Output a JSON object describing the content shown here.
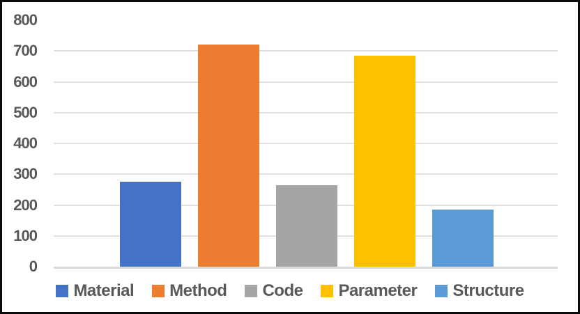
{
  "chart_data": {
    "type": "bar",
    "title": "",
    "xlabel": "",
    "ylabel": "",
    "categories": [
      "Material",
      "Method",
      "Code",
      "Parameter",
      "Structure"
    ],
    "values": [
      275,
      720,
      265,
      685,
      185
    ],
    "colors": [
      "#4472C4",
      "#ED7D31",
      "#A5A5A5",
      "#FFC000",
      "#5B9BD5"
    ],
    "ylim": [
      0,
      800
    ],
    "yticks": [
      0,
      100,
      200,
      300,
      400,
      500,
      600,
      700,
      800
    ],
    "grid": true,
    "top_gridline_shown": false,
    "legend_position": "bottom",
    "legend_labels": [
      "Material",
      "Method",
      "Code",
      "Parameter",
      "Structure"
    ]
  },
  "styles": {
    "gridline_color": "#E2E2E2",
    "axis_line_color": "#DADADA",
    "tick_label_color": "#595959",
    "legend_text_color": "#595959",
    "frame_border_color": "#0B0B0B",
    "background": "#FFFFFF"
  }
}
